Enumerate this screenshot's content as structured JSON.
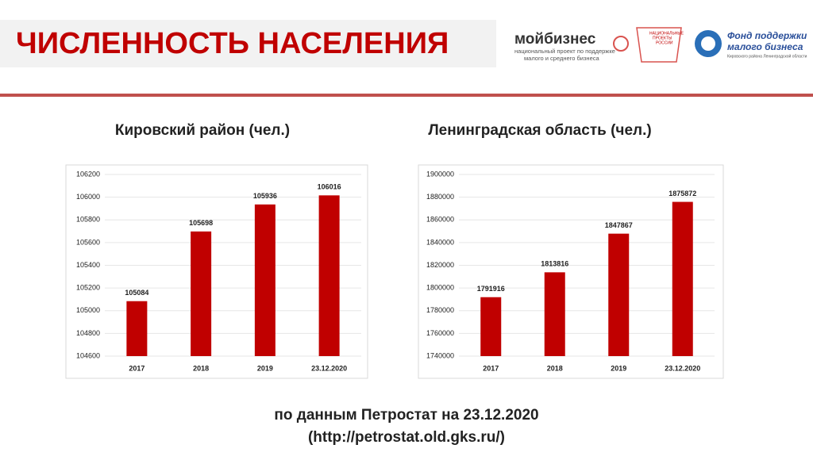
{
  "header": {
    "title": "ЧИСЛЕННОСТЬ НАСЕЛЕНИЯ",
    "logos": [
      "мойбизнес",
      "национальный проект по поддержке",
      "малого и среднего бизнеса",
      "НАЦИОНАЛЬНЫЕ",
      "ПРОЕКТЫ",
      "РОССИИ",
      "Фонд поддержки",
      "малого бизнеса",
      "Кировского района Ленинградской области"
    ]
  },
  "chart_data": [
    {
      "type": "bar",
      "title": "Кировский район (чел.)",
      "categories": [
        "2017",
        "2018",
        "2019",
        "23.12.2020"
      ],
      "values": [
        105084,
        105698,
        105936,
        106016
      ],
      "color": "#c00000",
      "ylim": [
        104600,
        106200
      ],
      "yticks": [
        104600,
        104800,
        105000,
        105200,
        105400,
        105600,
        105800,
        106000,
        106200
      ],
      "grid": true
    },
    {
      "type": "bar",
      "title": "Ленинградская область (чел.)",
      "categories": [
        "2017",
        "2018",
        "2019",
        "23.12.2020"
      ],
      "values": [
        1791916,
        1813816,
        1847867,
        1875872
      ],
      "color": "#c00000",
      "ylim": [
        1740000,
        1900000
      ],
      "yticks": [
        1740000,
        1760000,
        1780000,
        1800000,
        1820000,
        1840000,
        1860000,
        1880000,
        1900000
      ],
      "grid": true
    }
  ],
  "footer": [
    "по данным Петростат на 23.12.2020",
    "(http://petrostat.old.gks.ru/)"
  ]
}
